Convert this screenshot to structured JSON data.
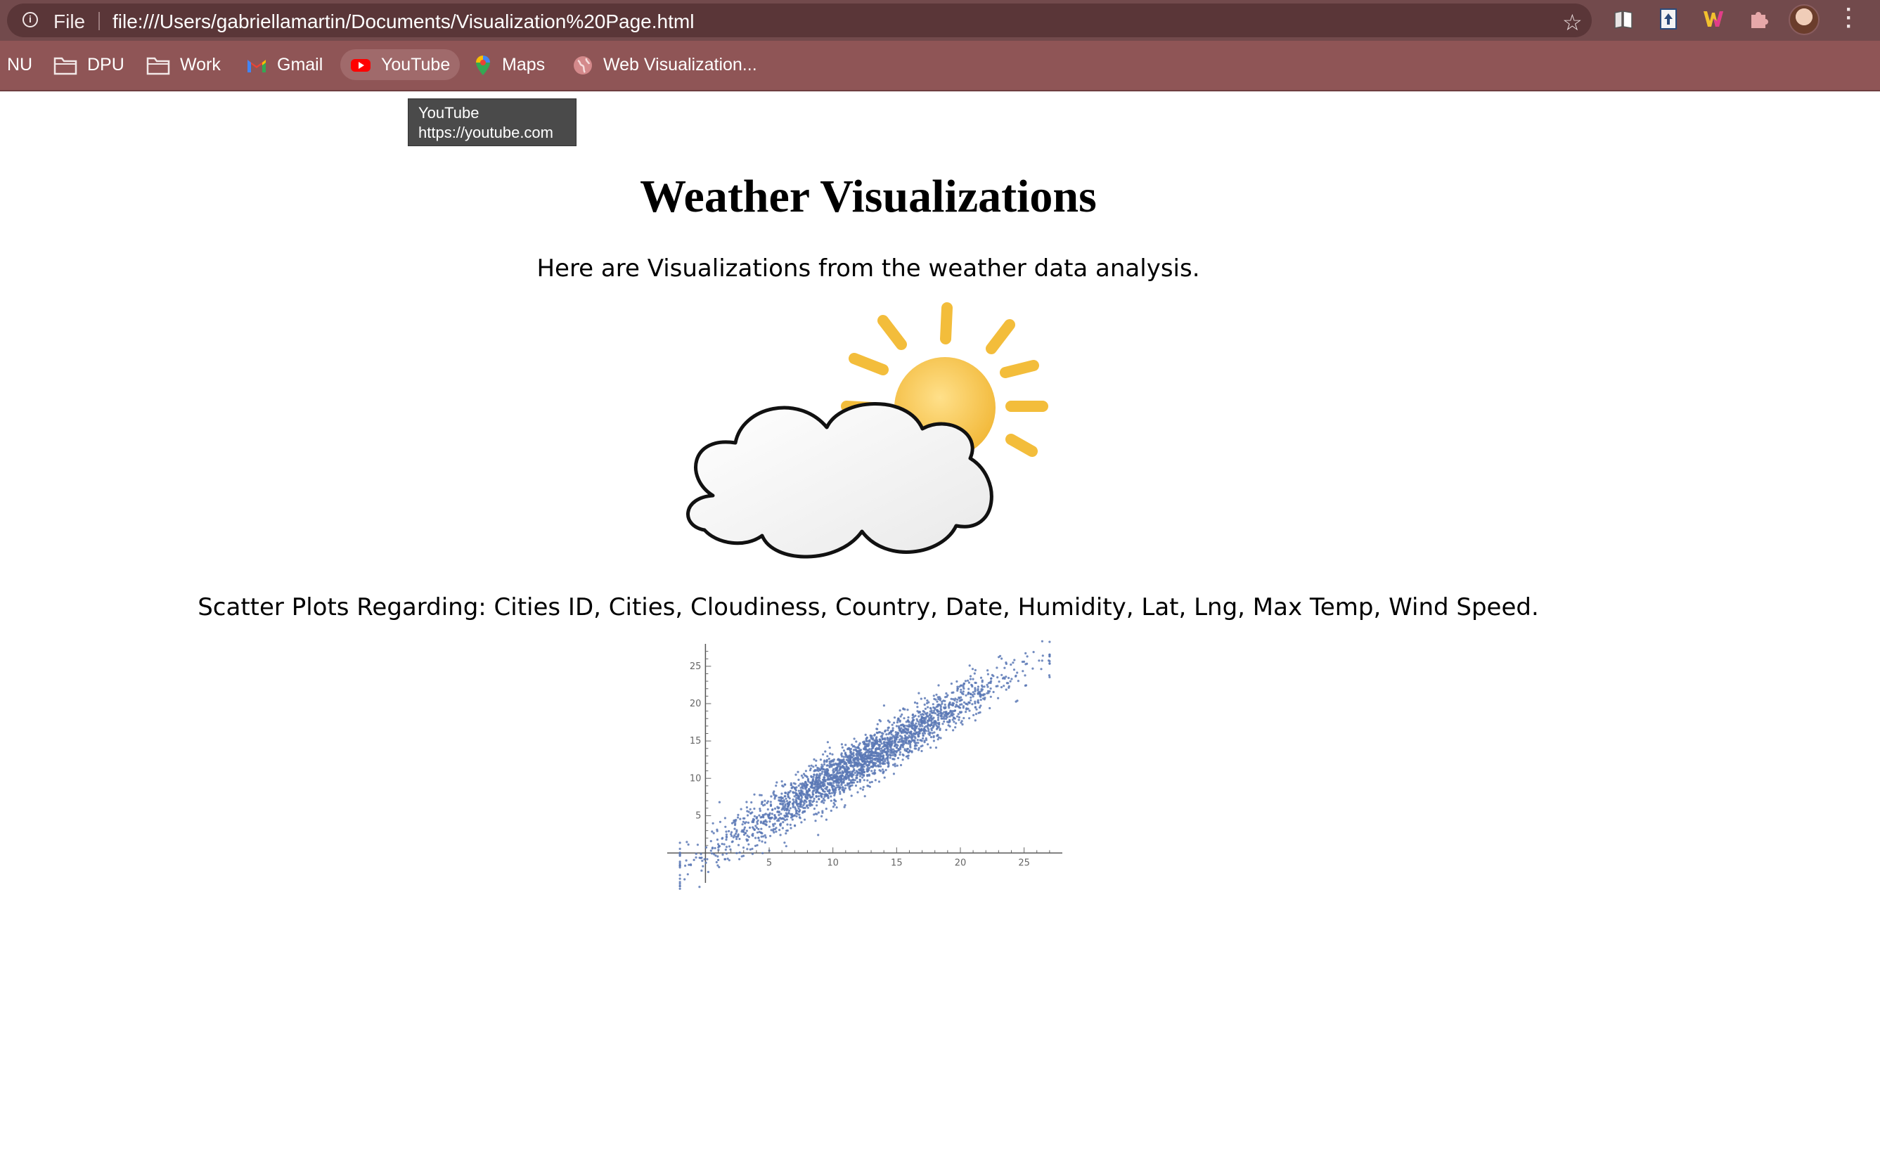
{
  "browser": {
    "scheme": "File",
    "url": "file:///Users/gabriellamartin/Documents/Visualization%20Page.html",
    "icons": {
      "info": "info-icon",
      "star": "star-icon",
      "extensions": [
        "reader-extension-icon",
        "upload-extension-icon",
        "w-extension-icon",
        "puzzle-extensions-icon"
      ],
      "menu": "kebab-menu-icon"
    },
    "colors": {
      "toolbar": "#724a4c",
      "bookmarks_bar": "#8f5556"
    }
  },
  "bookmarks": [
    {
      "label": "NU",
      "icon": ""
    },
    {
      "label": "DPU",
      "icon": "folder-icon"
    },
    {
      "label": "Work",
      "icon": "folder-icon"
    },
    {
      "label": "Gmail",
      "icon": "gmail-icon"
    },
    {
      "label": "YouTube",
      "icon": "youtube-icon"
    },
    {
      "label": "Maps",
      "icon": "maps-icon"
    },
    {
      "label": "Web Visualization...",
      "icon": "globe-icon"
    }
  ],
  "tooltip": {
    "title": "YouTube",
    "url": "https://youtube.com"
  },
  "page": {
    "title": "Weather Visualizations",
    "intro": "Here are Visualizations from the weather data analysis.",
    "scatter_caption": "Scatter Plots Regarding: Cities ID, Cities, Cloudiness, Country, Date, Humidity, Lat, Lng, Max Temp, Wind Speed."
  },
  "chart_data": {
    "type": "scatter",
    "x_ticks": [
      5,
      10,
      15,
      20,
      25
    ],
    "y_ticks": [
      5,
      10,
      15,
      20,
      25
    ],
    "xlim": [
      -3,
      28
    ],
    "ylim": [
      -4,
      28
    ],
    "trend": {
      "slope": 1.0,
      "intercept": 0.0
    },
    "point_color": "#5a78b5",
    "n_points": 2500,
    "x_range": [
      -2,
      27
    ]
  }
}
